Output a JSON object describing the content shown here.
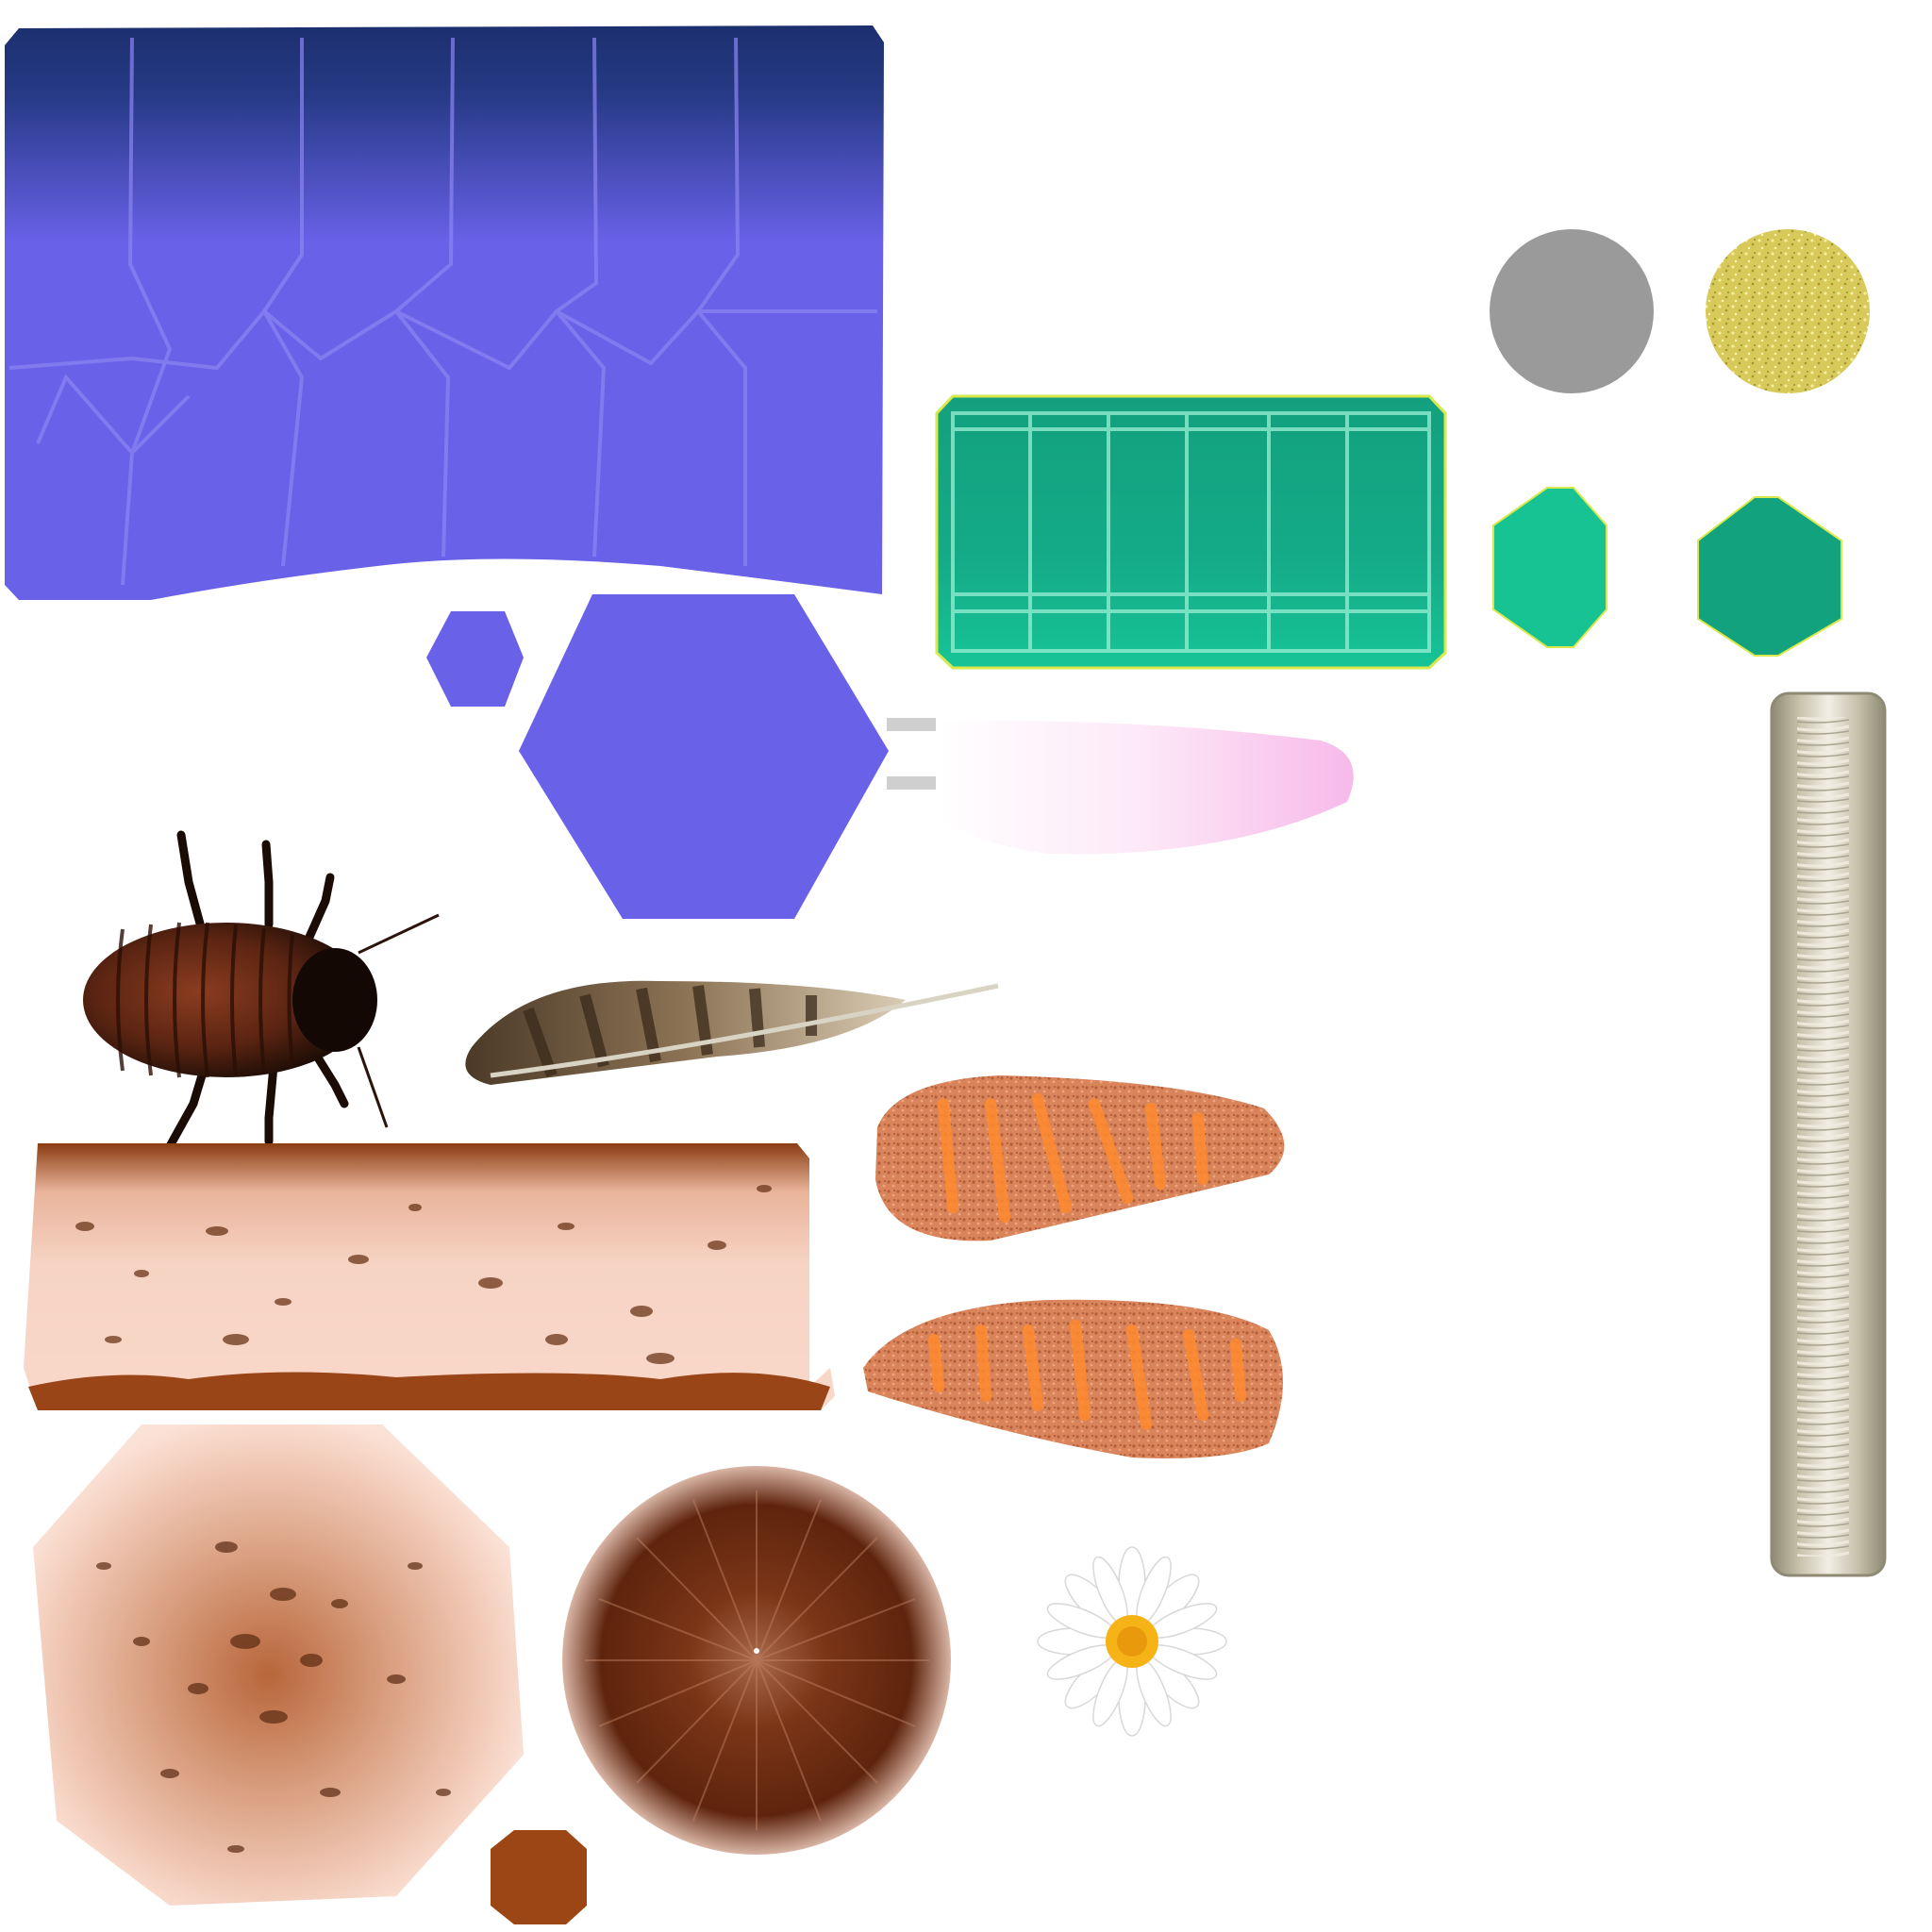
{
  "atlas": {
    "label": "texture-atlas",
    "palette": {
      "background": "#ffffff",
      "blue_panel": "#6a61e9",
      "blue_panel_dark": "#1c2f6e",
      "blue_line": "#8b86f2",
      "green_panel": "#14a885",
      "green_panel_light": "#17c393",
      "green_line": "#9af0d4",
      "green_border": "#d9e84a",
      "gray_disc": "#9a9a9a",
      "gold_disc": "#d7c95a",
      "skin_light": "#f6d3c3",
      "skin_dark": "#8a3d12",
      "speck": "#6a3518",
      "carrot_orange": "#ff8a2e",
      "carrot_base": "#d9845a",
      "hair_brown": "#6e2f14",
      "rust_octagon": "#9c4515",
      "spring_metal": "#c4bfa8",
      "spring_light": "#f1eee4",
      "petal_pink": "#f9c7ee",
      "daisy_center": "#f5b316"
    },
    "pieces": [
      {
        "name": "blue-cell-panel",
        "icon": "blue-cell-panel-icon"
      },
      {
        "name": "small-blue-hexagon",
        "icon": "hexagon-icon"
      },
      {
        "name": "large-blue-hexagon",
        "icon": "hexagon-icon"
      },
      {
        "name": "green-grid-panel",
        "icon": "grid-panel-icon"
      },
      {
        "name": "gray-disc",
        "icon": "circle-icon"
      },
      {
        "name": "gold-glitter-disc",
        "icon": "circle-icon"
      },
      {
        "name": "green-octagon-light",
        "icon": "octagon-icon"
      },
      {
        "name": "green-octagon-dark",
        "icon": "octagon-icon"
      },
      {
        "name": "pink-petal-strip",
        "icon": "petal-icon"
      },
      {
        "name": "coil-spring",
        "icon": "spring-icon"
      },
      {
        "name": "cockroach",
        "icon": "cockroach-icon"
      },
      {
        "name": "feather",
        "icon": "feather-icon"
      },
      {
        "name": "skin-log-strip",
        "icon": "log-icon"
      },
      {
        "name": "carrot-texture-top",
        "icon": "carrot-icon"
      },
      {
        "name": "carrot-texture-bottom",
        "icon": "carrot-icon"
      },
      {
        "name": "skin-speckled-disc",
        "icon": "disc-icon"
      },
      {
        "name": "hair-radial-disc",
        "icon": "disc-icon"
      },
      {
        "name": "daisy-flower",
        "icon": "daisy-icon"
      },
      {
        "name": "rust-octagon",
        "icon": "octagon-icon"
      }
    ]
  }
}
